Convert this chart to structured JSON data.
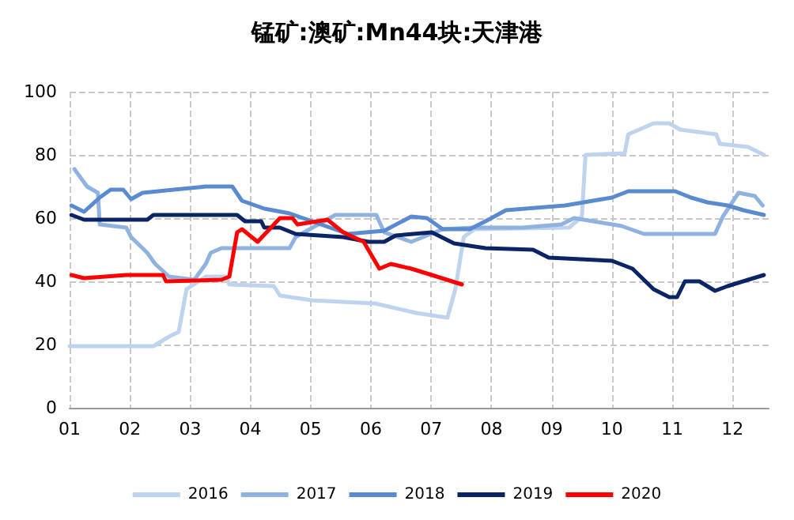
{
  "chart_data": {
    "type": "line",
    "title": "锰矿:澳矿:Mn44块:天津港",
    "xlim": [
      1,
      12.6
    ],
    "xticks": [
      {
        "value": 1,
        "label": "01"
      },
      {
        "value": 2,
        "label": "02"
      },
      {
        "value": 3,
        "label": "03"
      },
      {
        "value": 4,
        "label": "04"
      },
      {
        "value": 5,
        "label": "05"
      },
      {
        "value": 6,
        "label": "06"
      },
      {
        "value": 7,
        "label": "07"
      },
      {
        "value": 8,
        "label": "08"
      },
      {
        "value": 9,
        "label": "09"
      },
      {
        "value": 10,
        "label": "10"
      },
      {
        "value": 11,
        "label": "11"
      },
      {
        "value": 12,
        "label": "12"
      }
    ],
    "ylim": [
      0,
      100
    ],
    "yticks": [
      0,
      20,
      40,
      60,
      80,
      100
    ],
    "grid": true,
    "legend": "bottom",
    "marker": "none",
    "line_style": "solid",
    "series": [
      {
        "name": "2016",
        "color": "#bdd3ee",
        "x": [
          1.0,
          2.39,
          2.65,
          2.81,
          2.94,
          3.26,
          3.6,
          3.65,
          4.39,
          4.49,
          5.02,
          6.07,
          6.75,
          7.27,
          7.4,
          7.54,
          7.72,
          9.29,
          9.5,
          9.56,
          10.21,
          10.27,
          10.69,
          10.95,
          11.13,
          11.73,
          11.79,
          12.26,
          12.52
        ],
        "values": [
          19.5,
          19.5,
          22.5,
          24,
          37.5,
          41.5,
          41.5,
          39,
          38.5,
          35.5,
          34,
          33,
          30,
          28.5,
          37.5,
          54,
          56.5,
          57,
          60.5,
          80,
          80.5,
          86.5,
          90,
          90,
          88,
          86.5,
          83.5,
          82.5,
          80
        ]
      },
      {
        "name": "2017",
        "color": "#8fb2e0",
        "x": [
          1.08,
          1.29,
          1.47,
          1.5,
          1.94,
          2.02,
          2.29,
          2.42,
          2.65,
          3.07,
          3.26,
          3.34,
          3.52,
          4.65,
          4.75,
          5.41,
          6.09,
          6.22,
          6.67,
          7.19,
          7.72,
          8.51,
          9.16,
          9.37,
          9.69,
          10.16,
          10.53,
          11.71,
          11.84,
          12.1,
          12.37,
          12.5
        ],
        "values": [
          75.5,
          70,
          68,
          58,
          57,
          54,
          49,
          45.5,
          41.5,
          40.5,
          45.5,
          49,
          50.5,
          50.5,
          54,
          61,
          61,
          55.5,
          52.5,
          56.5,
          57,
          57,
          58,
          60,
          59,
          57.5,
          55,
          55,
          60.5,
          68,
          67,
          64
        ]
      },
      {
        "name": "2018",
        "color": "#5a8ad0",
        "x": [
          1.03,
          1.24,
          1.5,
          1.68,
          1.89,
          2.02,
          2.21,
          2.73,
          3.26,
          3.7,
          3.86,
          4.23,
          4.65,
          5.17,
          5.62,
          6.22,
          6.67,
          6.93,
          7.19,
          7.64,
          7.9,
          8.24,
          9.22,
          10.0,
          10.27,
          11.05,
          11.31,
          11.58,
          11.92,
          12.18,
          12.52
        ],
        "values": [
          64,
          62,
          66.5,
          69,
          69,
          66,
          68,
          69,
          70,
          70,
          65.5,
          63,
          61.5,
          58,
          55,
          56,
          60.5,
          60,
          56.5,
          56.5,
          59,
          62.5,
          64,
          66.5,
          68.5,
          68.5,
          66.5,
          65,
          64,
          62.5,
          61
        ]
      },
      {
        "name": "2019",
        "color": "#0b2466",
        "x": [
          1.03,
          1.24,
          2.29,
          2.39,
          3.78,
          3.91,
          4.18,
          4.23,
          4.49,
          4.75,
          5.54,
          5.96,
          6.22,
          6.41,
          7.01,
          7.38,
          7.9,
          8.69,
          8.95,
          9.48,
          10.0,
          10.34,
          10.69,
          10.95,
          11.08,
          11.21,
          11.45,
          11.71,
          11.92,
          12.26,
          12.52
        ],
        "values": [
          61,
          59.5,
          59.5,
          61,
          61,
          59,
          59,
          57,
          57,
          55,
          54,
          52.5,
          52.5,
          54.5,
          55.5,
          52,
          50.5,
          50,
          47.5,
          47,
          46.5,
          44,
          37.5,
          35,
          35,
          40,
          40,
          37,
          38.5,
          40.5,
          42
        ]
      },
      {
        "name": "2020",
        "color": "#ff0000",
        "x": [
          1.03,
          1.24,
          1.94,
          2.55,
          2.6,
          3.52,
          3.65,
          3.78,
          3.86,
          4.12,
          4.49,
          4.7,
          4.78,
          5.28,
          5.54,
          5.88,
          6.14,
          6.33,
          6.67,
          7.01,
          7.51
        ],
        "values": [
          42,
          41,
          42,
          42,
          40,
          40.5,
          41.5,
          55.5,
          56.5,
          52.5,
          60,
          60,
          58,
          59.5,
          55.5,
          52.5,
          44,
          45.5,
          44,
          42,
          39
        ]
      }
    ]
  }
}
